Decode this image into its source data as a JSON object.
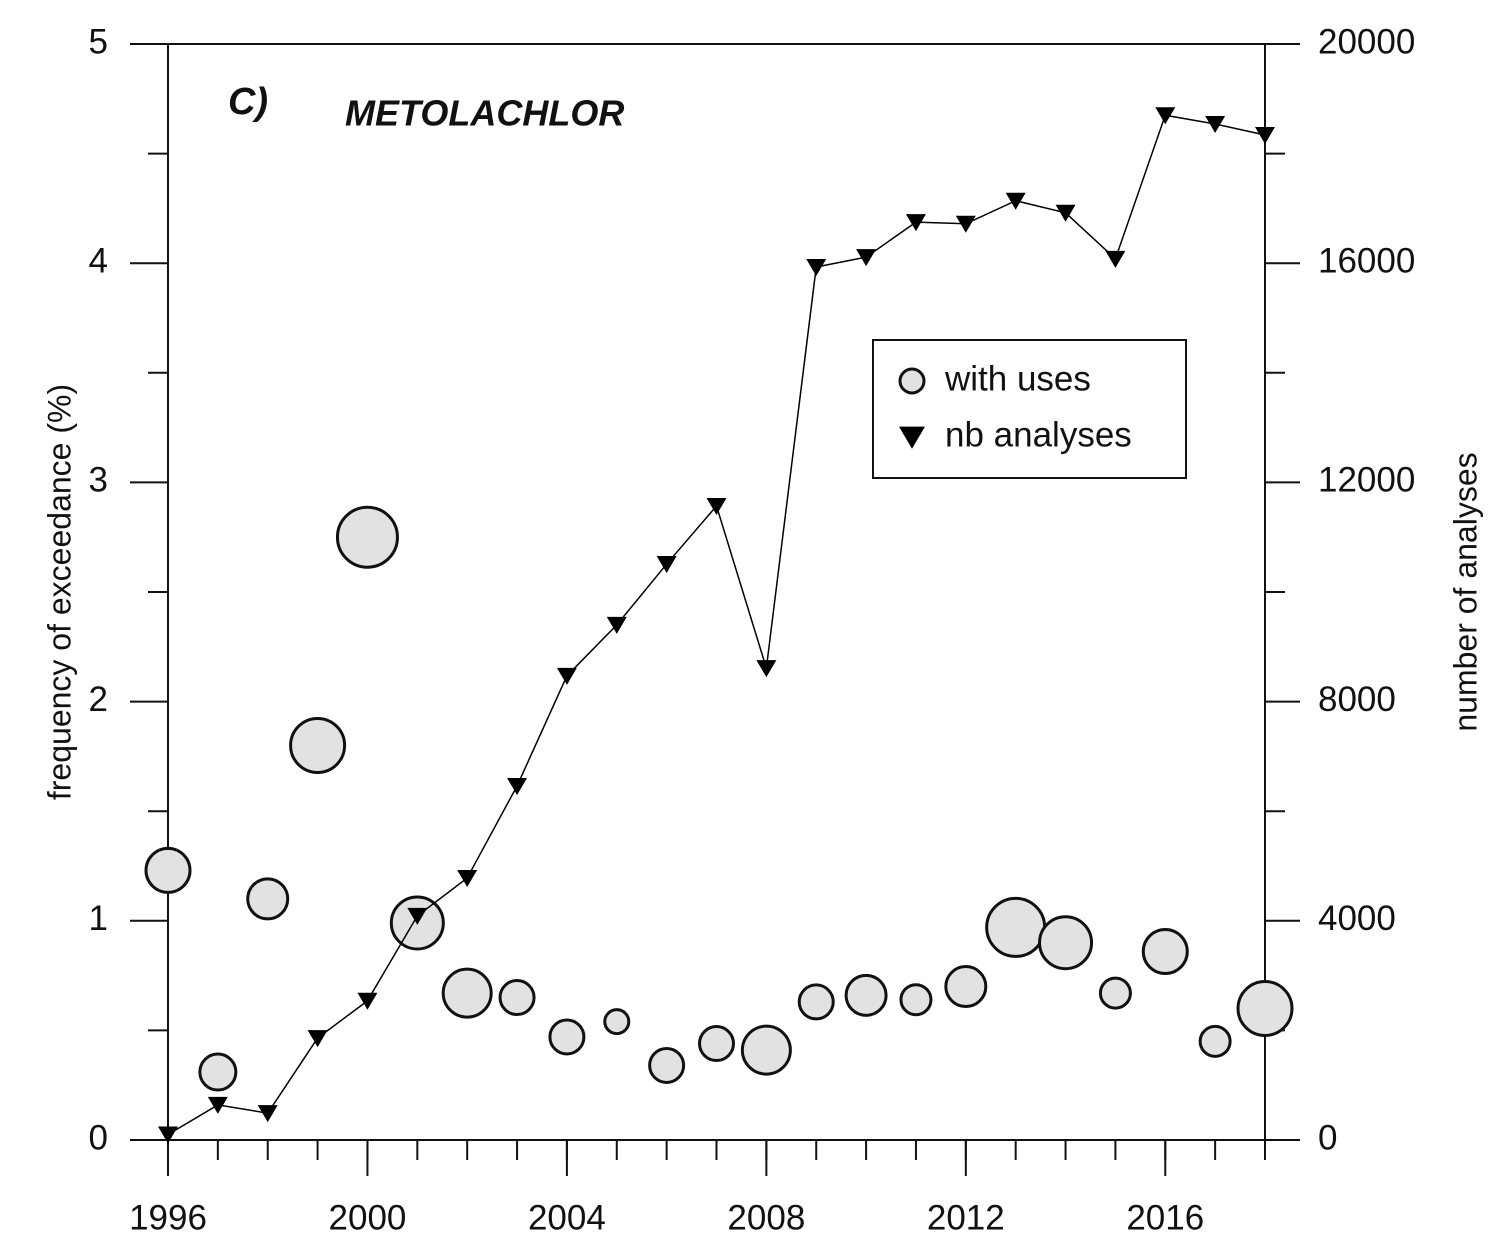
{
  "chart_data": {
    "type": "bubble-line",
    "annotations": [
      "C)",
      "METOLACHLOR"
    ],
    "ylabel": "frequency of exceedance (%)",
    "y2label": "number of analyses",
    "x": [
      1996,
      1997,
      1998,
      1999,
      2000,
      2001,
      2002,
      2003,
      2004,
      2005,
      2006,
      2007,
      2008,
      2009,
      2010,
      2011,
      2012,
      2013,
      2014,
      2015,
      2016,
      2017,
      2018
    ],
    "xlim": [
      1996,
      2018
    ],
    "xticks": [
      1996,
      2000,
      2004,
      2008,
      2012,
      2016
    ],
    "ylim": [
      0,
      5
    ],
    "yticks": [
      0,
      1,
      2,
      3,
      4,
      5
    ],
    "y2lim": [
      0,
      20000
    ],
    "y2ticks": [
      0,
      4000,
      8000,
      12000,
      16000,
      20000
    ],
    "legend": "upper right",
    "series": [
      {
        "name": "with uses",
        "kind": "bubble",
        "color": "#e2e2e2",
        "values": [
          1.23,
          0.31,
          1.1,
          1.8,
          2.75,
          0.99,
          0.67,
          0.65,
          0.47,
          0.54,
          0.34,
          0.44,
          0.41,
          0.63,
          0.66,
          0.64,
          0.7,
          0.97,
          0.9,
          0.67,
          0.86,
          0.45,
          0.6
        ],
        "sizes": [
          5.5,
          4.5,
          5,
          6.75,
          7.5,
          6.5,
          6,
          4.25,
          4.25,
          3,
          4.25,
          4.25,
          6,
          4.25,
          5,
          3.75,
          5,
          7.25,
          6.5,
          3.75,
          5.5,
          3.75,
          6.75
        ]
      },
      {
        "name": "nb analyses",
        "kind": "line",
        "axis": "y2",
        "color": "#000000",
        "values": [
          100,
          640,
          490,
          1860,
          2540,
          4090,
          4780,
          6460,
          8470,
          9400,
          10510,
          11570,
          8610,
          15930,
          16110,
          16750,
          16720,
          17140,
          16920,
          16080,
          18700,
          18540,
          18340
        ]
      }
    ]
  }
}
